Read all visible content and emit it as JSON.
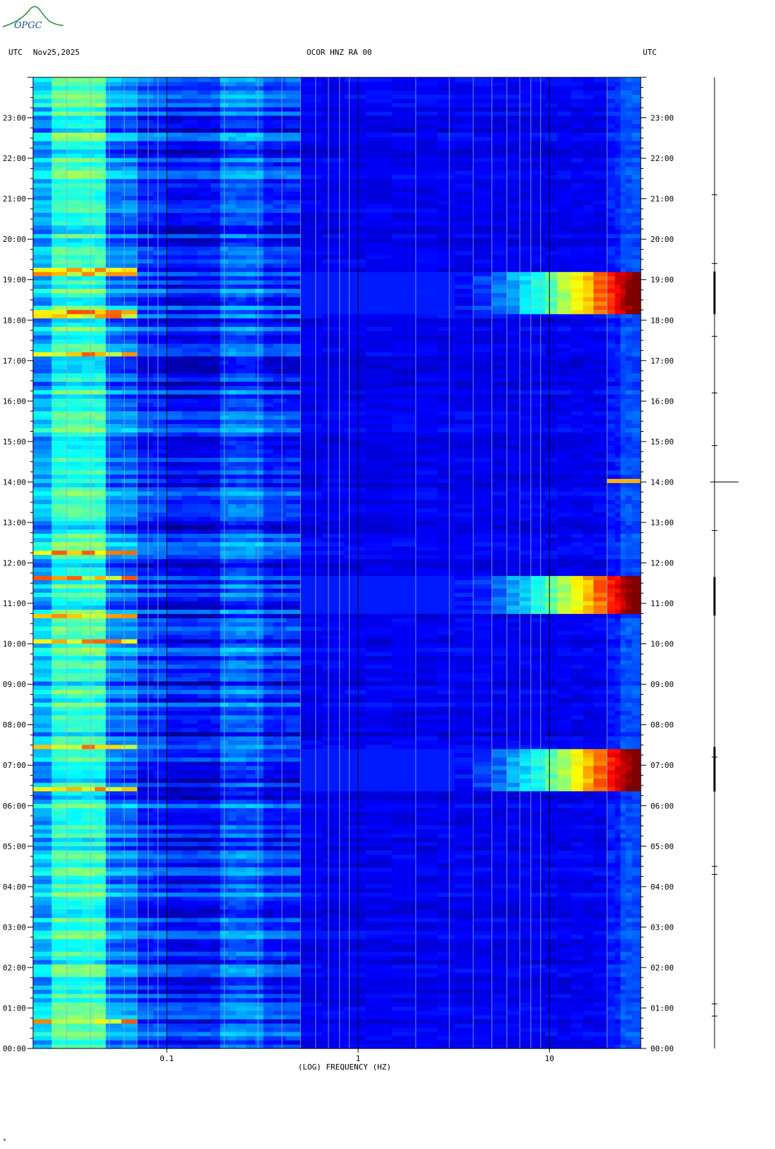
{
  "logo": {
    "text": "OPGC",
    "icon": "volcano-logo-icon"
  },
  "header": {
    "left_tz": "UTC",
    "date": "Nov25,2025",
    "station": "OCOR HNZ RA 00",
    "right_tz": "UTC"
  },
  "footer_mark": "*",
  "chart_data": {
    "type": "heatmap",
    "title": "OCOR HNZ RA 00",
    "xlabel": "(LOG) FREQUENCY (HZ)",
    "x_scale": "log",
    "xlim": [
      0.02,
      30
    ],
    "x_ticks": [
      {
        "value": 0.1,
        "label": "0.1"
      },
      {
        "value": 1,
        "label": "1"
      },
      {
        "value": 10,
        "label": "10"
      }
    ],
    "ylabel": "UTC",
    "ylim": [
      0,
      24
    ],
    "y_tick_labels": [
      "00:00",
      "01:00",
      "02:00",
      "03:00",
      "04:00",
      "05:00",
      "06:00",
      "07:00",
      "08:00",
      "09:00",
      "10:00",
      "11:00",
      "12:00",
      "13:00",
      "14:00",
      "15:00",
      "16:00",
      "17:00",
      "18:00",
      "19:00",
      "20:00",
      "21:00",
      "22:00",
      "23:00"
    ],
    "colorscale": [
      "#00007f",
      "#0000ff",
      "#0080ff",
      "#00ffff",
      "#80ff80",
      "#ffff00",
      "#ff8000",
      "#ff0000",
      "#7f0000"
    ],
    "events": [
      {
        "start_hour": 6.35,
        "end_hour": 7.45,
        "min_freq_hz": 3.0,
        "peak": "dark-red"
      },
      {
        "start_hour": 10.7,
        "end_hour": 11.65,
        "min_freq_hz": 3.0,
        "peak": "dark-red"
      },
      {
        "start_hour": 18.15,
        "end_hour": 19.2,
        "min_freq_hz": 3.0,
        "peak": "dark-red"
      },
      {
        "start_hour": 13.95,
        "end_hour": 14.05,
        "min_freq_hz": 20,
        "peak": "orange"
      }
    ]
  }
}
